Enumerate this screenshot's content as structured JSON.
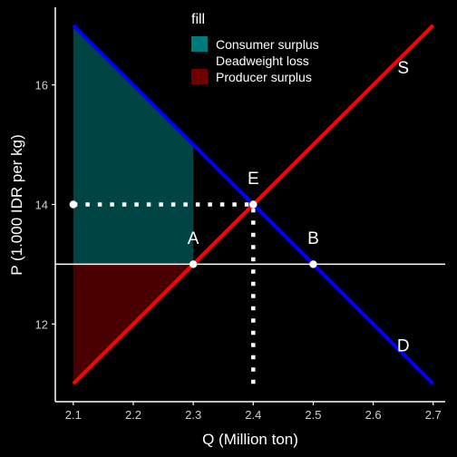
{
  "chart_data": {
    "type": "line",
    "title": "",
    "xlabel": "Q (Million ton)",
    "ylabel": "P (1.000 IDR per kg)",
    "xlim": [
      2.07,
      2.72
    ],
    "ylim": [
      10.7,
      17.3
    ],
    "x_ticks": [
      2.1,
      2.2,
      2.3,
      2.4,
      2.5,
      2.6,
      2.7
    ],
    "x_tick_labels": [
      "2.1",
      "2.2",
      "2.3",
      "2.4",
      "2.5",
      "2.6",
      "2.7"
    ],
    "y_ticks": [
      12,
      14,
      16
    ],
    "y_tick_labels": [
      "12",
      "14",
      "16"
    ],
    "grid": false,
    "legend": {
      "title": "fill",
      "placement": "top",
      "entries": [
        {
          "label": "Consumer surplus",
          "color": "#007a7a"
        },
        {
          "label": "Deadweight loss",
          "color": "#000000"
        },
        {
          "label": "Producer surplus",
          "color": "#700000"
        }
      ]
    },
    "series": [
      {
        "key": "demand",
        "color": "#0000ff",
        "points": [
          [
            2.1,
            17
          ],
          [
            2.7,
            11
          ]
        ]
      },
      {
        "key": "supply",
        "color": "#ff0000",
        "points": [
          [
            2.1,
            11
          ],
          [
            2.7,
            17
          ]
        ]
      }
    ],
    "areas": [
      {
        "key": "consumer_surplus",
        "color": "#004444",
        "points": [
          [
            2.1,
            17
          ],
          [
            2.3,
            15
          ],
          [
            2.3,
            13
          ],
          [
            2.1,
            13
          ]
        ]
      },
      {
        "key": "producer_surplus",
        "color": "#4a0000",
        "points": [
          [
            2.1,
            13
          ],
          [
            2.3,
            13
          ],
          [
            2.1,
            11
          ]
        ]
      }
    ],
    "reference_lines": [
      {
        "key": "price_line",
        "orientation": "horizontal",
        "value": 13,
        "color": "#ffffff",
        "style": "solid"
      },
      {
        "key": "equilibrium_price",
        "orientation": "horizontal",
        "value": 14,
        "from": 2.1,
        "to": 2.4,
        "color": "#ffffff",
        "style": "dotted"
      },
      {
        "key": "equilibrium_quantity",
        "orientation": "vertical",
        "value": 2.4,
        "from": 11,
        "to": 14,
        "color": "#ffffff",
        "style": "dotted"
      }
    ],
    "points": [
      {
        "key": "eq-start",
        "x": 2.1,
        "y": 14
      },
      {
        "key": "E",
        "x": 2.4,
        "y": 14
      },
      {
        "key": "A",
        "x": 2.3,
        "y": 13
      },
      {
        "key": "B",
        "x": 2.5,
        "y": 13
      }
    ],
    "annotations": [
      {
        "text": "E",
        "x": 2.4,
        "y": 14.45
      },
      {
        "text": "A",
        "x": 2.3,
        "y": 13.45
      },
      {
        "text": "B",
        "x": 2.5,
        "y": 13.45
      },
      {
        "text": "S",
        "x": 2.65,
        "y": 16.3
      },
      {
        "text": "D",
        "x": 2.65,
        "y": 11.65
      }
    ]
  }
}
